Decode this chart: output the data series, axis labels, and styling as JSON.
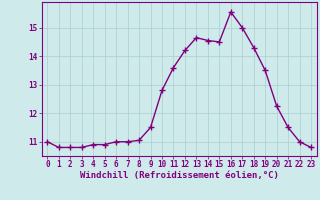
{
  "x": [
    0,
    1,
    2,
    3,
    4,
    5,
    6,
    7,
    8,
    9,
    10,
    11,
    12,
    13,
    14,
    15,
    16,
    17,
    18,
    19,
    20,
    21,
    22,
    23
  ],
  "y": [
    11.0,
    10.8,
    10.8,
    10.8,
    10.9,
    10.9,
    11.0,
    11.0,
    11.05,
    11.5,
    12.8,
    13.6,
    14.2,
    14.65,
    14.55,
    14.5,
    15.55,
    15.0,
    14.3,
    13.5,
    12.25,
    11.5,
    11.0,
    10.8
  ],
  "line_color": "#800080",
  "marker": "+",
  "marker_size": 4,
  "linewidth": 1.0,
  "xlabel": "Windchill (Refroidissement éolien,°C)",
  "xlabel_fontsize": 6.5,
  "xtick_labels": [
    "0",
    "1",
    "2",
    "3",
    "4",
    "5",
    "6",
    "7",
    "8",
    "9",
    "10",
    "11",
    "12",
    "13",
    "14",
    "15",
    "16",
    "17",
    "18",
    "19",
    "20",
    "21",
    "22",
    "23"
  ],
  "ytick_labels": [
    "11",
    "12",
    "13",
    "14",
    "15"
  ],
  "yticks": [
    11,
    12,
    13,
    14,
    15
  ],
  "ylim": [
    10.5,
    15.9
  ],
  "xlim": [
    -0.5,
    23.5
  ],
  "background_color": "#ceeaea",
  "grid_color": "#aacece",
  "tick_fontsize": 5.5,
  "label_color": "#800080",
  "tick_color": "#800080",
  "spine_color": "#800080"
}
